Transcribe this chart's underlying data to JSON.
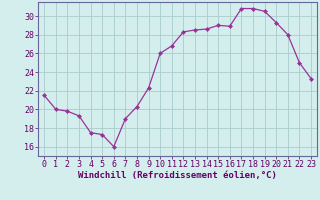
{
  "x": [
    0,
    1,
    2,
    3,
    4,
    5,
    6,
    7,
    8,
    9,
    10,
    11,
    12,
    13,
    14,
    15,
    16,
    17,
    18,
    19,
    20,
    21,
    22,
    23
  ],
  "y": [
    21.5,
    20.0,
    19.8,
    19.3,
    17.5,
    17.3,
    16.0,
    19.0,
    20.3,
    22.3,
    26.0,
    26.8,
    28.3,
    28.5,
    28.6,
    29.0,
    28.9,
    30.8,
    30.8,
    30.5,
    29.3,
    28.0,
    25.0,
    23.3
  ],
  "line_color": "#993399",
  "marker_color": "#993399",
  "bg_color": "#d4eeed",
  "grid_color": "#aacccc",
  "xlabel": "Windchill (Refroidissement éolien,°C)",
  "xlim": [
    -0.5,
    23.5
  ],
  "ylim": [
    15.0,
    31.5
  ],
  "yticks": [
    16,
    18,
    20,
    22,
    24,
    26,
    28,
    30
  ],
  "xticks": [
    0,
    1,
    2,
    3,
    4,
    5,
    6,
    7,
    8,
    9,
    10,
    11,
    12,
    13,
    14,
    15,
    16,
    17,
    18,
    19,
    20,
    21,
    22,
    23
  ],
  "xlabel_fontsize": 6.5,
  "tick_fontsize": 6.0,
  "label_color": "#660066",
  "spine_color": "#666699"
}
